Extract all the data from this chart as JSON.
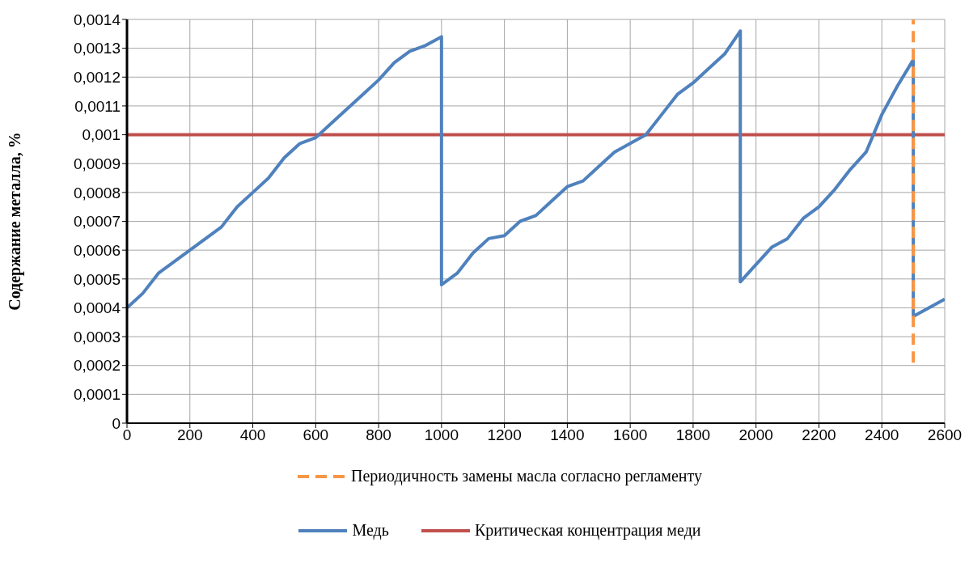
{
  "chart_data": {
    "type": "line",
    "ylabel": "Содержание металла, %",
    "xlim": [
      0,
      2600
    ],
    "xticks": [
      0,
      200,
      400,
      600,
      800,
      1000,
      1200,
      1400,
      1600,
      1800,
      2000,
      2200,
      2400,
      2600
    ],
    "ylim": [
      0,
      0.0014
    ],
    "yticks": [
      0,
      {
        "value": 0.0001,
        "label": "0,0001"
      },
      {
        "value": 0.0002,
        "label": "0,0002"
      },
      {
        "value": 0.0003,
        "label": "0,0003"
      },
      {
        "value": 0.0004,
        "label": "0,0004"
      },
      {
        "value": 0.0005,
        "label": "0,0005"
      },
      {
        "value": 0.0006,
        "label": "0,0006"
      },
      {
        "value": 0.0007,
        "label": "0,0007"
      },
      {
        "value": 0.0008,
        "label": "0,0008"
      },
      {
        "value": 0.0009,
        "label": "0,0009"
      },
      {
        "value": 0.001,
        "label": "0,001"
      },
      {
        "value": 0.0011,
        "label": "0,0011"
      },
      {
        "value": 0.0012,
        "label": "0,0012"
      },
      {
        "value": 0.0013,
        "label": "0,0013"
      },
      {
        "value": 0.0014,
        "label": "0,0014"
      }
    ],
    "grid": true,
    "legend": "bottom",
    "marker": "none",
    "series": [
      {
        "name": "Периодичность замены масла согласно регламенту",
        "color": "#f79646",
        "line_style": "dashed",
        "x": [
          2500,
          2500
        ],
        "values": [
          0.00021,
          0.0014
        ]
      },
      {
        "name": "Медь",
        "color": "#4f81bd",
        "line_style": "solid",
        "x": [
          0,
          50,
          100,
          150,
          200,
          250,
          300,
          350,
          400,
          450,
          500,
          550,
          600,
          650,
          700,
          750,
          800,
          850,
          900,
          950,
          1000,
          1000,
          1050,
          1100,
          1150,
          1200,
          1250,
          1300,
          1350,
          1400,
          1450,
          1500,
          1550,
          1600,
          1650,
          1700,
          1750,
          1800,
          1850,
          1900,
          1950,
          1950,
          2000,
          2050,
          2100,
          2150,
          2200,
          2250,
          2300,
          2350,
          2400,
          2450,
          2500,
          2500,
          2600
        ],
        "values": [
          0.0004,
          0.00045,
          0.00052,
          0.00056,
          0.0006,
          0.00064,
          0.00068,
          0.00075,
          0.0008,
          0.00085,
          0.00092,
          0.00097,
          0.00099,
          0.00104,
          0.00109,
          0.00114,
          0.00119,
          0.00125,
          0.00129,
          0.00131,
          0.00134,
          0.00048,
          0.00052,
          0.00059,
          0.00064,
          0.00065,
          0.0007,
          0.00072,
          0.00077,
          0.00082,
          0.00084,
          0.00089,
          0.00094,
          0.00097,
          0.001,
          0.00107,
          0.00114,
          0.00118,
          0.00123,
          0.00128,
          0.00136,
          0.00049,
          0.00055,
          0.00061,
          0.00064,
          0.00071,
          0.00075,
          0.00081,
          0.00088,
          0.00094,
          0.00107,
          0.00117,
          0.00126,
          0.00037,
          0.00043
        ]
      },
      {
        "name": "Критическая концентрация меди",
        "color": "#c0504d",
        "line_style": "solid",
        "x": [
          0,
          2600
        ],
        "values": [
          0.001,
          0.001
        ]
      }
    ]
  }
}
